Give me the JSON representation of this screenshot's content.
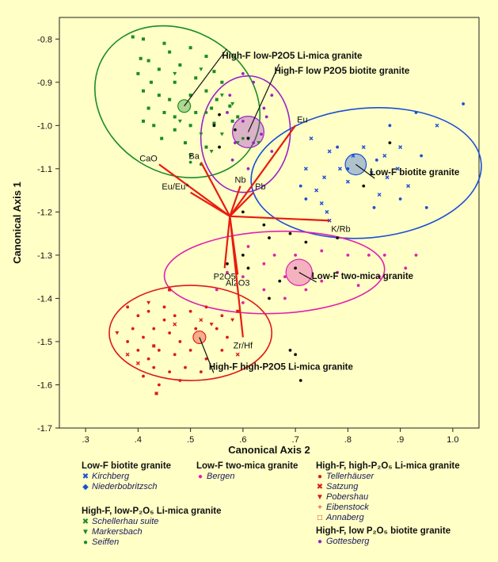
{
  "chart_data": {
    "type": "scatter",
    "title": "",
    "xlabel": "Canonical Axis 2",
    "ylabel": "Canonical Axis 1",
    "xlim": [
      0.25,
      1.05
    ],
    "ylim": [
      -1.7,
      -0.75
    ],
    "xticks": [
      ".3",
      ".4",
      ".5",
      ".6",
      ".7",
      ".8",
      ".9",
      "1.0"
    ],
    "xtick_values": [
      0.3,
      0.4,
      0.5,
      0.6,
      0.7,
      0.8,
      0.9,
      1.0
    ],
    "yticks": [
      "-0.8",
      "-0.9",
      "-1.0",
      "-1.1",
      "-1.2",
      "-1.3",
      "-1.4",
      "-1.5",
      "-1.6",
      "-1.7"
    ],
    "ytick_values": [
      -0.8,
      -0.9,
      -1.0,
      -1.1,
      -1.2,
      -1.3,
      -1.4,
      -1.5,
      -1.6,
      -1.7
    ],
    "group_colors": {
      "green": "#1a8c2a",
      "purple": "#9a22c8",
      "blue": "#1a4fd6",
      "magenta": "#e020b0",
      "red": "#e01818"
    },
    "ellipses": [
      {
        "group": "green",
        "cx": 0.475,
        "cy": -0.945,
        "rx": 0.165,
        "ry": 0.165,
        "rot": 32
      },
      {
        "group": "purple",
        "cx": 0.605,
        "cy": -1.02,
        "rx": 0.085,
        "ry": 0.135,
        "rot": 6
      },
      {
        "group": "blue",
        "cx": 0.835,
        "cy": -1.11,
        "rx": 0.22,
        "ry": 0.15,
        "rot": -5
      },
      {
        "group": "magenta",
        "cx": 0.66,
        "cy": -1.34,
        "rx": 0.21,
        "ry": 0.095,
        "rot": -2
      },
      {
        "group": "red",
        "cx": 0.5,
        "cy": -1.48,
        "rx": 0.155,
        "ry": 0.11,
        "rot": 0
      }
    ],
    "centroids": [
      {
        "group": "green",
        "x": 0.488,
        "y": -0.955,
        "r": 0.012
      },
      {
        "group": "purple",
        "x": 0.61,
        "y": -1.015,
        "r": 0.03
      },
      {
        "group": "blue",
        "x": 0.815,
        "y": -1.09,
        "r": 0.02
      },
      {
        "group": "magenta",
        "x": 0.707,
        "y": -1.34,
        "r": 0.025
      },
      {
        "group": "red",
        "x": 0.517,
        "y": -1.49,
        "r": 0.012
      }
    ],
    "vectors": {
      "origin": [
        0.575,
        -1.21
      ],
      "items": [
        {
          "label": "Eu",
          "x": 0.7,
          "y": -1.0
        },
        {
          "label": "CaO",
          "x": 0.44,
          "y": -1.09
        },
        {
          "label": "Ba",
          "x": 0.52,
          "y": -1.085
        },
        {
          "label": "Eu/Eu*",
          "x": 0.5,
          "y": -1.155
        },
        {
          "label": "Nb",
          "x": 0.595,
          "y": -1.14
        },
        {
          "label": "Pb",
          "x": 0.62,
          "y": -1.155
        },
        {
          "label": "K/Rb",
          "x": 0.765,
          "y": -1.22
        },
        {
          "label": "P2O5",
          "x": 0.565,
          "y": -1.33
        },
        {
          "label": "Al2O3",
          "x": 0.59,
          "y": -1.345
        },
        {
          "label": "Zr/Hf",
          "x": 0.6,
          "y": -1.49
        }
      ]
    },
    "annotations": [
      {
        "text": "High-F low-P2O5 Li-mica granite",
        "x": 0.56,
        "y": -0.845,
        "tx": 0.488,
        "ty": -0.955
      },
      {
        "text": "High-F low P2O5 biotite granite",
        "x": 0.66,
        "y": -0.88,
        "tx": 0.61,
        "ty": -1.015
      },
      {
        "text": "Low-F biotite granite",
        "x": 0.842,
        "y": -1.115,
        "tx": 0.815,
        "ty": -1.09
      },
      {
        "text": "Low-F two-mica granite",
        "x": 0.731,
        "y": -1.355,
        "tx": 0.707,
        "ty": -1.34
      },
      {
        "text": "High-F high-P2O5 Li-mica granite",
        "x": 0.535,
        "y": -1.565,
        "tx": 0.517,
        "ty": -1.49
      }
    ],
    "series": [
      {
        "group": "green",
        "sym": "square",
        "points": [
          [
            0.39,
            -0.795
          ],
          [
            0.41,
            -0.8
          ],
          [
            0.45,
            -0.81
          ],
          [
            0.405,
            -0.845
          ],
          [
            0.42,
            -0.85
          ],
          [
            0.46,
            -0.83
          ],
          [
            0.5,
            -0.82
          ],
          [
            0.53,
            -0.84
          ],
          [
            0.48,
            -0.86
          ],
          [
            0.44,
            -0.87
          ],
          [
            0.4,
            -0.88
          ],
          [
            0.425,
            -0.9
          ],
          [
            0.47,
            -0.9
          ],
          [
            0.51,
            -0.89
          ],
          [
            0.545,
            -0.875
          ],
          [
            0.56,
            -0.9
          ],
          [
            0.41,
            -0.92
          ],
          [
            0.44,
            -0.93
          ],
          [
            0.46,
            -0.94
          ],
          [
            0.5,
            -0.93
          ],
          [
            0.53,
            -0.92
          ],
          [
            0.55,
            -0.94
          ],
          [
            0.42,
            -0.96
          ],
          [
            0.45,
            -0.97
          ],
          [
            0.47,
            -0.98
          ],
          [
            0.51,
            -0.97
          ],
          [
            0.54,
            -0.96
          ],
          [
            0.575,
            -0.955
          ],
          [
            0.43,
            -1.0
          ],
          [
            0.47,
            -1.01
          ],
          [
            0.5,
            -1.0
          ],
          [
            0.545,
            -0.995
          ],
          [
            0.59,
            -0.98
          ],
          [
            0.445,
            -1.03
          ],
          [
            0.49,
            -1.04
          ],
          [
            0.53,
            -1.05
          ],
          [
            0.41,
            -0.99
          ],
          [
            0.58,
            -0.99
          ]
        ]
      },
      {
        "group": "green",
        "sym": "tri",
        "points": [
          [
            0.47,
            -0.88
          ],
          [
            0.52,
            -0.87
          ],
          [
            0.56,
            -0.93
          ],
          [
            0.48,
            -0.99
          ],
          [
            0.52,
            -1.02
          ],
          [
            0.56,
            -1.02
          ],
          [
            0.59,
            -1.04
          ],
          [
            0.5,
            -1.07
          ],
          [
            0.54,
            -1.06
          ],
          [
            0.58,
            -0.95
          ],
          [
            0.61,
            -1.03
          ],
          [
            0.63,
            -1.04
          ]
        ]
      },
      {
        "group": "green",
        "sym": "dot",
        "points": [
          [
            0.5,
            -1.085
          ],
          [
            0.52,
            -1.09
          ],
          [
            0.6,
            -1.03
          ],
          [
            0.53,
            -0.97
          ]
        ]
      },
      {
        "group": "purple",
        "sym": "dot",
        "points": [
          [
            0.575,
            -0.93
          ],
          [
            0.6,
            -0.88
          ],
          [
            0.62,
            -0.9
          ],
          [
            0.655,
            -0.93
          ],
          [
            0.57,
            -0.97
          ],
          [
            0.6,
            -0.99
          ],
          [
            0.645,
            -0.98
          ],
          [
            0.585,
            -1.04
          ],
          [
            0.62,
            -1.04
          ],
          [
            0.655,
            -1.06
          ],
          [
            0.61,
            -1.1
          ],
          [
            0.58,
            -1.08
          ],
          [
            0.64,
            -0.96
          ],
          [
            0.635,
            -1.02
          ]
        ]
      },
      {
        "group": "blue",
        "sym": "cross",
        "points": [
          [
            0.73,
            -1.03
          ],
          [
            0.765,
            -1.06
          ],
          [
            0.72,
            -1.1
          ],
          [
            0.755,
            -1.12
          ],
          [
            0.74,
            -1.15
          ],
          [
            0.785,
            -1.1
          ],
          [
            0.75,
            -1.18
          ],
          [
            0.8,
            -1.13
          ],
          [
            0.845,
            -1.11
          ],
          [
            0.87,
            -1.07
          ],
          [
            0.9,
            -1.05
          ],
          [
            0.875,
            -1.12
          ],
          [
            0.86,
            -1.16
          ],
          [
            0.895,
            -1.1
          ],
          [
            0.915,
            -1.14
          ],
          [
            0.83,
            -1.05
          ],
          [
            0.97,
            -1.0
          ],
          [
            0.76,
            -1.2
          ],
          [
            0.765,
            -1.22
          ],
          [
            0.81,
            -1.07
          ]
        ]
      },
      {
        "group": "blue",
        "sym": "dot",
        "points": [
          [
            0.88,
            -1.0
          ],
          [
            0.93,
            -0.97
          ],
          [
            1.02,
            -0.95
          ],
          [
            0.94,
            -1.07
          ],
          [
            0.9,
            -1.17
          ],
          [
            0.95,
            -1.19
          ],
          [
            0.71,
            -1.14
          ],
          [
            0.78,
            -1.05
          ],
          [
            0.8,
            -1.1
          ],
          [
            0.855,
            -1.08
          ],
          [
            0.85,
            -1.19
          ],
          [
            0.72,
            -1.17
          ]
        ]
      },
      {
        "group": "magenta",
        "sym": "dot",
        "points": [
          [
            0.61,
            -1.28
          ],
          [
            0.64,
            -1.32
          ],
          [
            0.66,
            -1.3
          ],
          [
            0.7,
            -1.3
          ],
          [
            0.75,
            -1.29
          ],
          [
            0.8,
            -1.3
          ],
          [
            0.84,
            -1.3
          ],
          [
            0.87,
            -1.3
          ],
          [
            0.91,
            -1.33
          ],
          [
            0.93,
            -1.3
          ],
          [
            0.6,
            -1.35
          ],
          [
            0.64,
            -1.38
          ],
          [
            0.68,
            -1.35
          ],
          [
            0.75,
            -1.36
          ],
          [
            0.78,
            -1.34
          ],
          [
            0.82,
            -1.37
          ],
          [
            0.86,
            -1.35
          ],
          [
            0.55,
            -1.38
          ],
          [
            0.57,
            -1.34
          ],
          [
            0.68,
            -1.4
          ],
          [
            0.72,
            -1.38
          ],
          [
            0.6,
            -1.41
          ]
        ]
      },
      {
        "group": "red",
        "sym": "dot",
        "points": [
          [
            0.38,
            -1.42
          ],
          [
            0.4,
            -1.44
          ],
          [
            0.42,
            -1.43
          ],
          [
            0.45,
            -1.42
          ],
          [
            0.47,
            -1.44
          ],
          [
            0.5,
            -1.43
          ],
          [
            0.53,
            -1.42
          ],
          [
            0.56,
            -1.44
          ],
          [
            0.39,
            -1.47
          ],
          [
            0.41,
            -1.49
          ],
          [
            0.43,
            -1.47
          ],
          [
            0.46,
            -1.48
          ],
          [
            0.48,
            -1.5
          ],
          [
            0.51,
            -1.47
          ],
          [
            0.55,
            -1.47
          ],
          [
            0.57,
            -1.49
          ],
          [
            0.4,
            -1.52
          ],
          [
            0.42,
            -1.54
          ],
          [
            0.44,
            -1.52
          ],
          [
            0.47,
            -1.53
          ],
          [
            0.5,
            -1.52
          ],
          [
            0.53,
            -1.54
          ],
          [
            0.56,
            -1.52
          ],
          [
            0.43,
            -1.56
          ],
          [
            0.46,
            -1.57
          ],
          [
            0.49,
            -1.56
          ],
          [
            0.52,
            -1.57
          ],
          [
            0.41,
            -1.58
          ],
          [
            0.44,
            -1.6
          ],
          [
            0.48,
            -1.59
          ],
          [
            0.45,
            -1.45
          ],
          [
            0.38,
            -1.5
          ]
        ]
      },
      {
        "group": "red",
        "sym": "tri",
        "points": [
          [
            0.42,
            -1.41
          ],
          [
            0.54,
            -1.46
          ],
          [
            0.58,
            -1.45
          ],
          [
            0.36,
            -1.48
          ]
        ]
      },
      {
        "group": "red",
        "sym": "cross",
        "points": [
          [
            0.4,
            -1.55
          ],
          [
            0.47,
            -1.46
          ],
          [
            0.52,
            -1.45
          ],
          [
            0.59,
            -1.53
          ],
          [
            0.38,
            -1.53
          ]
        ]
      },
      {
        "group": "red",
        "sym": "square",
        "points": [
          [
            0.435,
            -1.62
          ],
          [
            0.43,
            -1.51
          ],
          [
            0.46,
            -1.38
          ],
          [
            0.59,
            -1.43
          ]
        ]
      },
      {
        "group": "black",
        "sym": "dot",
        "points": [
          [
            0.64,
            -1.23
          ],
          [
            0.65,
            -1.26
          ],
          [
            0.69,
            -1.25
          ],
          [
            0.72,
            -1.27
          ],
          [
            0.7,
            -1.33
          ],
          [
            0.67,
            -1.36
          ],
          [
            0.69,
            -1.52
          ],
          [
            0.7,
            -1.53
          ],
          [
            0.71,
            -1.59
          ],
          [
            0.57,
            -1.32
          ],
          [
            0.61,
            -1.33
          ],
          [
            0.6,
            -1.3
          ],
          [
            0.65,
            -1.4
          ],
          [
            0.78,
            -1.26
          ],
          [
            0.88,
            -1.04
          ],
          [
            0.83,
            -1.14
          ],
          [
            0.6,
            -1.2
          ],
          [
            0.555,
            -0.975
          ],
          [
            0.545,
            -1.0
          ],
          [
            0.585,
            -1.01
          ],
          [
            0.61,
            -1.03
          ],
          [
            0.555,
            -1.05
          ]
        ]
      }
    ]
  },
  "legend": {
    "groups": [
      {
        "title": "Low-F biotite granite",
        "items": [
          {
            "label": "Kirchberg",
            "color": "#1a4fd6",
            "sym": "✖"
          },
          {
            "label": "Niederbobritzsch",
            "color": "#1a4fd6",
            "sym": "◆"
          }
        ]
      },
      {
        "title": "Low-F two-mica granite",
        "items": [
          {
            "label": "Bergen",
            "color": "#e020b0",
            "sym": "●"
          }
        ]
      },
      {
        "title": "High-F, high-P₂O₅ Li-mica granite",
        "items": [
          {
            "label": "Tellerhäuser",
            "color": "#e01818",
            "sym": "●"
          },
          {
            "label": "Satzung",
            "color": "#e01818",
            "sym": "✖"
          },
          {
            "label": "Pobershau",
            "color": "#e01818",
            "sym": "▼"
          },
          {
            "label": "Eibenstock",
            "color": "#e01818",
            "sym": "+"
          },
          {
            "label": "Annaberg",
            "color": "#e01818",
            "sym": "□"
          }
        ]
      },
      {
        "title": "High-F, low-P₂O₅ Li-mica granite",
        "items": [
          {
            "label": "Schellerhau suite",
            "color": "#1a8c2a",
            "sym": "✖"
          },
          {
            "label": "Markersbach",
            "color": "#1a8c2a",
            "sym": "▼"
          },
          {
            "label": "Seiffen",
            "color": "#1a8c2a",
            "sym": "●"
          }
        ]
      },
      {
        "title": "High-F, low P₂O₅ biotite granite",
        "items": [
          {
            "label": "Gottesberg",
            "color": "#9a22c8",
            "sym": "●"
          }
        ]
      }
    ]
  }
}
